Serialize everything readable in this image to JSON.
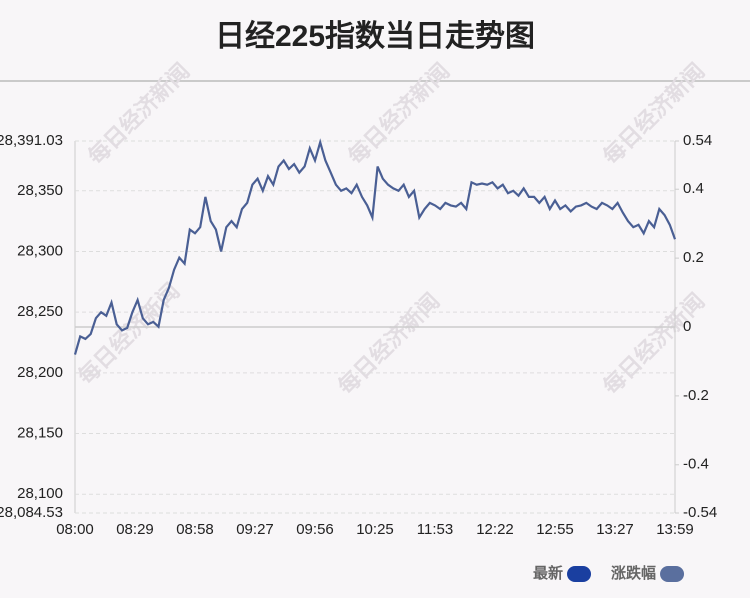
{
  "chart_data": {
    "type": "line",
    "title": "日经225指数当日走势图",
    "watermark": "每日经济新闻",
    "xtick_labels": [
      "08:00",
      "08:29",
      "08:58",
      "09:27",
      "09:56",
      "10:25",
      "11:53",
      "12:22",
      "12:55",
      "13:27",
      "13:59"
    ],
    "series": [
      {
        "name": "最新",
        "color": "#4a5f94",
        "values": [
          28215,
          28230,
          28228,
          28232,
          28245,
          28250,
          28247,
          28258,
          28240,
          28235,
          28237,
          28250,
          28260,
          28245,
          28240,
          28242,
          28238,
          28260,
          28270,
          28285,
          28295,
          28290,
          28318,
          28315,
          28320,
          28345,
          28325,
          28318,
          28300,
          28320,
          28325,
          28320,
          28335,
          28340,
          28355,
          28360,
          28350,
          28362,
          28355,
          28370,
          28375,
          28368,
          28372,
          28365,
          28370,
          28385,
          28375,
          28390,
          28375,
          28365,
          28355,
          28350,
          28352,
          28348,
          28355,
          28345,
          28338,
          28328,
          28370,
          28360,
          28355,
          28352,
          28350,
          28355,
          28345,
          28350,
          28328,
          28335,
          28340,
          28338,
          28335,
          28340,
          28338,
          28337,
          28340,
          28335,
          28357,
          28355,
          28356,
          28355,
          28357,
          28352,
          28355,
          28348,
          28350,
          28346,
          28352,
          28345,
          28345,
          28340,
          28345,
          28335,
          28342,
          28335,
          28338,
          28333,
          28337,
          28338,
          28340,
          28337,
          28335,
          28340,
          28338,
          28335,
          28340,
          28332,
          28325,
          28320,
          28322,
          28315,
          28325,
          28320,
          28335,
          28330,
          28322,
          28310
        ]
      }
    ],
    "legend": [
      {
        "name": "最新",
        "color": "#1a3fa0"
      },
      {
        "name": "涨跌幅",
        "color": "#5a6f9e"
      }
    ],
    "ylim": [
      28084.53,
      28391.03
    ],
    "yticks": [
      {
        "value": 28084.53,
        "label": "28,084.53"
      },
      {
        "value": 28100,
        "label": "28,100"
      },
      {
        "value": 28150,
        "label": "28,150"
      },
      {
        "value": 28200,
        "label": "28,200"
      },
      {
        "value": 28250,
        "label": "28,250"
      },
      {
        "value": 28300,
        "label": "28,300"
      },
      {
        "value": 28350,
        "label": "28,350"
      },
      {
        "value": 28391.03,
        "label": "28,391.03"
      }
    ],
    "y2lim": [
      -0.54,
      0.54
    ],
    "y2ticks": [
      -0.54,
      -0.4,
      -0.2,
      0,
      0.2,
      0.4,
      0.54
    ],
    "grid": true
  }
}
